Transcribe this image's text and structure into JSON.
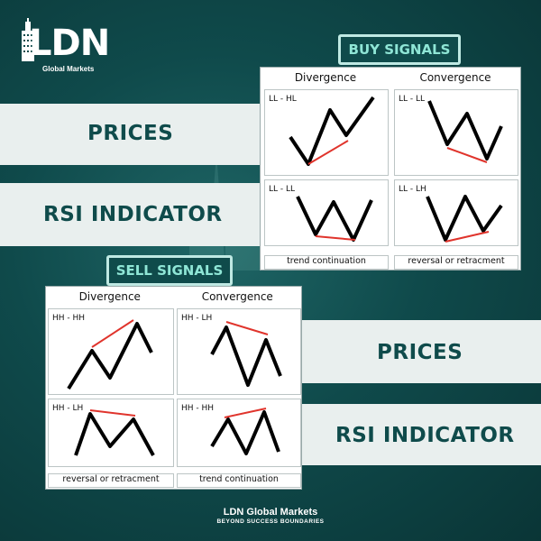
{
  "brand": {
    "logo_text": "LDN",
    "logo_sub": "Global Markets",
    "footer_name": "LDN Global Markets",
    "footer_tagline": "BEYOND SUCCESS BOUNDARIES"
  },
  "bands": {
    "top_prices": "PRICES",
    "top_rsi": "RSI INDICATOR",
    "bottom_prices": "PRICES",
    "bottom_rsi": "RSI INDICATOR"
  },
  "buy": {
    "tag": "BUY SIGNALS",
    "col_divergence": "Divergence",
    "col_convergence": "Convergence",
    "cells": [
      "LL - HL",
      "LL - LL",
      "LL - LL",
      "LL - LH"
    ],
    "foot_left": "trend continuation",
    "foot_right": "reversal or retracment"
  },
  "sell": {
    "tag": "SELL SIGNALS",
    "col_divergence": "Divergence",
    "col_convergence": "Convergence",
    "cells": [
      "HH - HH",
      "HH - LH",
      "HH - LH",
      "HH - HH"
    ],
    "foot_left": "reversal or retracment",
    "foot_right": "trend continuation"
  },
  "colors": {
    "accent": "#8fe6d6",
    "dark": "#0f4b4b",
    "line_red": "#e0342c"
  }
}
